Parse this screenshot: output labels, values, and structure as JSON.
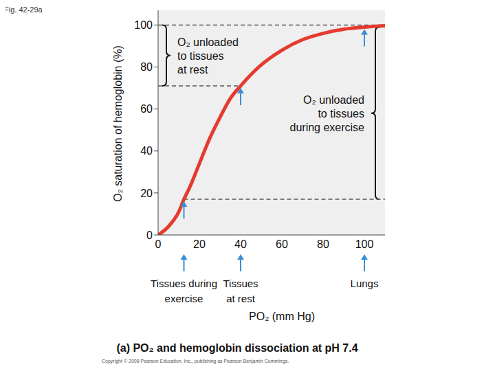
{
  "chart_data": {
    "type": "line",
    "title": "Fig. 42-29a",
    "x_label": "PO₂ (mm Hg)",
    "y_label": "O₂ saturation of hemoglobin (%)",
    "caption": "(a) PO₂ and hemoglobin dissociation at pH 7.4",
    "footer": "Copyright © 2008 Pearson Education, Inc., publishing as Pearson Benjamin Cummings.",
    "x": [
      0,
      5,
      10,
      12.5,
      15,
      20,
      25,
      30,
      35,
      40,
      50,
      60,
      70,
      80,
      90,
      100,
      110
    ],
    "values": [
      0,
      4,
      11,
      17,
      22,
      34,
      46,
      56,
      65,
      71,
      81,
      88,
      93,
      96,
      98,
      99,
      99.6
    ],
    "color": "#e53b2f",
    "xlim": [
      0,
      110
    ],
    "ylim": [
      0,
      107
    ],
    "xticks": [
      0,
      20,
      40,
      60,
      80,
      100
    ],
    "yticks": [
      0,
      20,
      40,
      60,
      80,
      100
    ],
    "grid": false,
    "markers": [
      {
        "label": [
          "Tissues during",
          "exercise"
        ],
        "x": 12.5,
        "y": 17
      },
      {
        "label": [
          "Tissues",
          "at rest"
        ],
        "x": 40,
        "y": 71
      },
      {
        "label": [
          "Lungs"
        ],
        "x": 100,
        "y": 99
      }
    ],
    "brackets": [
      {
        "label": [
          "O₂ unloaded",
          "to tissues",
          "at rest"
        ],
        "from": 100,
        "to": 71
      },
      {
        "label": [
          "O₂ unloaded",
          "to tissues",
          "during exercise"
        ],
        "from": 99,
        "to": 17
      }
    ],
    "dashed_lines": [
      {
        "y": 100,
        "x": [
          0,
          110
        ]
      },
      {
        "y": 71,
        "x": [
          0,
          40
        ]
      },
      {
        "y": 17,
        "x": [
          12.5,
          110
        ]
      }
    ]
  }
}
